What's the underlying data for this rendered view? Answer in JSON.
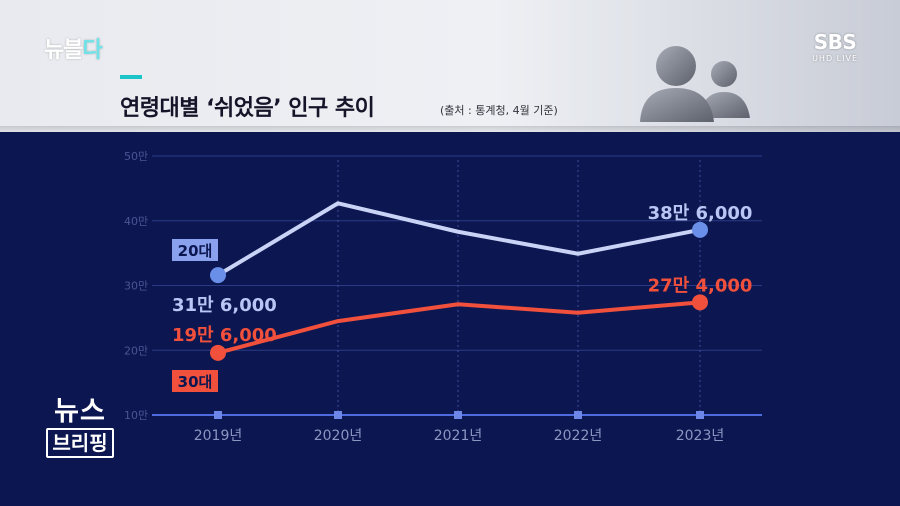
{
  "branding": {
    "program_logo_main": "뉴블",
    "program_logo_accent": "다",
    "network_logo": "SBS",
    "network_sub": "UHD LIVE",
    "corner_logo_line1": "뉴스",
    "corner_logo_line2": "브리핑"
  },
  "header": {
    "title": "연령대별 ‘쉬었음’ 인구 추이",
    "source": "(출처 : 통계청, 4월 기준)"
  },
  "chart_data": {
    "type": "line",
    "categories": [
      "2019년",
      "2020년",
      "2021년",
      "2022년",
      "2023년"
    ],
    "yticks": [
      "10만",
      "20만",
      "30만",
      "40만",
      "50만"
    ],
    "ylim": [
      100000,
      500000
    ],
    "series": [
      {
        "name": "20대",
        "values": [
          316000,
          427000,
          383000,
          349000,
          386000
        ],
        "color": "#c9d3f6",
        "dot_color": "#6a8fe8"
      },
      {
        "name": "30대",
        "values": [
          196000,
          245000,
          271000,
          258000,
          274000
        ],
        "color": "#f0503c",
        "dot_color": "#f0503c"
      }
    ],
    "annotations": [
      {
        "series": 0,
        "point": 0,
        "text": "31만 6,000"
      },
      {
        "series": 0,
        "point": 4,
        "text": "38만 6,000"
      },
      {
        "series": 1,
        "point": 0,
        "text": "19만 6,000"
      },
      {
        "series": 1,
        "point": 4,
        "text": "27만 4,000"
      }
    ]
  }
}
